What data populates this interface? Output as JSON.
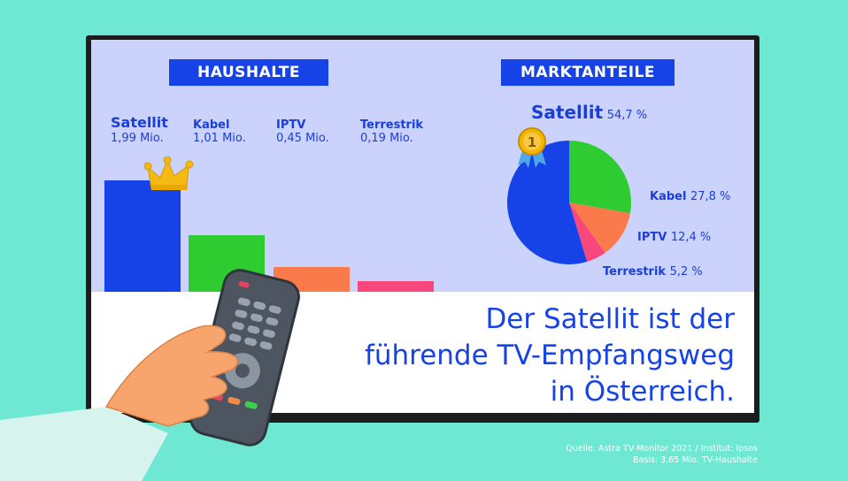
{
  "left_panel": {
    "title": "HAUSHALTE"
  },
  "right_panel": {
    "title": "MARKTANTEILE"
  },
  "headline": {
    "line1": "Der Satellit ist der",
    "line2": "führende TV-Empfangsweg",
    "line3": "in Österreich."
  },
  "source": {
    "line1": "Quelle: Astra TV-Monitor 2021 / Institut: Ipsos",
    "line2": "Basis: 3,65 Mio. TV-Haushalte"
  },
  "colors": {
    "satellit": "#1643e8",
    "kabel": "#2ecc31",
    "iptv": "#fb7a4c",
    "terrestrik": "#f7477c",
    "text_blue": "#1a3fd6"
  },
  "icons": {
    "crown": "crown-icon",
    "medal": "medal-icon",
    "remote": "remote-control-icon",
    "hand": "hand-icon"
  },
  "medal_number": "1",
  "chart_data": [
    {
      "type": "bar",
      "title": "HAUSHALTE",
      "categories": [
        "Satellit",
        "Kabel",
        "IPTV",
        "Terrestrik"
      ],
      "values": [
        1.99,
        1.01,
        0.45,
        0.19
      ],
      "value_labels": [
        "1,99 Mio.",
        "1,01 Mio.",
        "0,45 Mio.",
        "0,19 Mio."
      ],
      "unit": "Mio.",
      "colors": [
        "#1643e8",
        "#2ecc31",
        "#fb7a4c",
        "#f7477c"
      ],
      "grid": false
    },
    {
      "type": "pie",
      "title": "MARKTANTEILE",
      "categories": [
        "Satellit",
        "Kabel",
        "IPTV",
        "Terrestrik"
      ],
      "values": [
        54.7,
        27.8,
        12.4,
        5.2
      ],
      "value_labels": [
        "54,7 %",
        "27,8 %",
        "12,4 %",
        "5,2 %"
      ],
      "unit": "%",
      "colors": [
        "#1643e8",
        "#2ecc31",
        "#fb7a4c",
        "#f7477c"
      ]
    }
  ]
}
